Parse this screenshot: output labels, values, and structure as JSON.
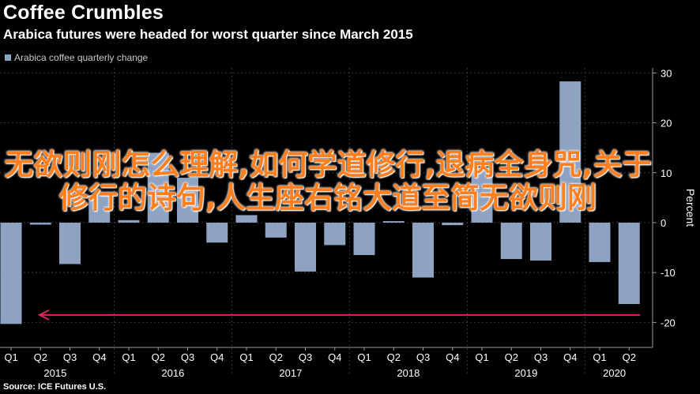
{
  "header": {
    "title": "Coffee Crumbles",
    "subtitle": "Arabica futures were headed for worst quarter since March 2015"
  },
  "legend": {
    "label": "Arabica coffee quarterly change"
  },
  "source": "Source: ICE Futures U.S.",
  "overlay_text": "无欲则刚怎么理解,如何学道修行,退病全身咒,关于修行的诗句,人生座右铭大道至简无欲则刚",
  "colors": {
    "background": "#000000",
    "bar": "#8ea2c2",
    "grid": "#3a3a3a",
    "axis_text": "#ffffff",
    "arrow": "#e0245e",
    "overlay_text": "#ff7f1e"
  },
  "chart_data": {
    "type": "bar",
    "categories": [
      "Q1",
      "Q2",
      "Q3",
      "Q4",
      "Q1",
      "Q2",
      "Q3",
      "Q4",
      "Q1",
      "Q2",
      "Q3",
      "Q4",
      "Q1",
      "Q2",
      "Q3",
      "Q4",
      "Q1",
      "Q2",
      "Q3",
      "Q4",
      "Q1",
      "Q2"
    ],
    "years": [
      {
        "label": "2015",
        "start": 0,
        "end": 3
      },
      {
        "label": "2016",
        "start": 4,
        "end": 7
      },
      {
        "label": "2017",
        "start": 8,
        "end": 11
      },
      {
        "label": "2018",
        "start": 12,
        "end": 15
      },
      {
        "label": "2019",
        "start": 16,
        "end": 19
      },
      {
        "label": "2020",
        "start": 20,
        "end": 21
      }
    ],
    "series": [
      {
        "name": "Arabica coffee quarterly change",
        "values": [
          -20.3,
          -0.4,
          -8.3,
          5.5,
          0.5,
          14.0,
          9.0,
          -4.0,
          1.5,
          -3.0,
          -9.8,
          -4.5,
          -6.5,
          0.3,
          -11.0,
          -0.5,
          11.0,
          -7.3,
          -7.6,
          28.3,
          -7.9,
          -16.3
        ]
      }
    ],
    "yticks": [
      30,
      20,
      10,
      0,
      -10,
      -20
    ],
    "ylim": [
      -25,
      31
    ],
    "ylabel": "Percent",
    "annotation": {
      "type": "arrow",
      "from_index": 21,
      "to_index": 0,
      "y": -18.5
    },
    "grid": true
  }
}
